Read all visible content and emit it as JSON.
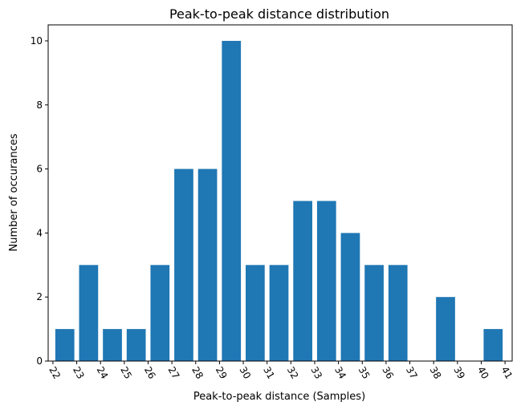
{
  "chart_data": {
    "type": "bar",
    "title": "Peak-to-peak distance distribution",
    "xlabel": "Peak-to-peak distance (Samples)",
    "ylabel": "Number of occurances",
    "x_ticks": [
      "22",
      "23",
      "24",
      "25",
      "26",
      "27",
      "28",
      "29",
      "30",
      "31",
      "32",
      "33",
      "34",
      "35",
      "36",
      "37",
      "38",
      "39",
      "40",
      "41"
    ],
    "bins": [
      {
        "start": 22,
        "end": 23,
        "count": 1
      },
      {
        "start": 23,
        "end": 24,
        "count": 3
      },
      {
        "start": 24,
        "end": 25,
        "count": 1
      },
      {
        "start": 25,
        "end": 26,
        "count": 1
      },
      {
        "start": 26,
        "end": 27,
        "count": 3
      },
      {
        "start": 27,
        "end": 28,
        "count": 6
      },
      {
        "start": 28,
        "end": 29,
        "count": 6
      },
      {
        "start": 29,
        "end": 30,
        "count": 10
      },
      {
        "start": 30,
        "end": 31,
        "count": 3
      },
      {
        "start": 31,
        "end": 32,
        "count": 3
      },
      {
        "start": 32,
        "end": 33,
        "count": 5
      },
      {
        "start": 33,
        "end": 34,
        "count": 5
      },
      {
        "start": 34,
        "end": 35,
        "count": 4
      },
      {
        "start": 35,
        "end": 36,
        "count": 3
      },
      {
        "start": 36,
        "end": 37,
        "count": 3
      },
      {
        "start": 37,
        "end": 38,
        "count": 0
      },
      {
        "start": 38,
        "end": 39,
        "count": 2
      },
      {
        "start": 39,
        "end": 40,
        "count": 0
      },
      {
        "start": 40,
        "end": 41,
        "count": 1
      }
    ],
    "y_ticks": [
      "0",
      "2",
      "4",
      "6",
      "8",
      "10"
    ],
    "xlim": [
      21.8,
      41.3
    ],
    "ylim": [
      0,
      10.5
    ],
    "bar_color": "#1f77b4",
    "grid": false,
    "legend": "none"
  }
}
